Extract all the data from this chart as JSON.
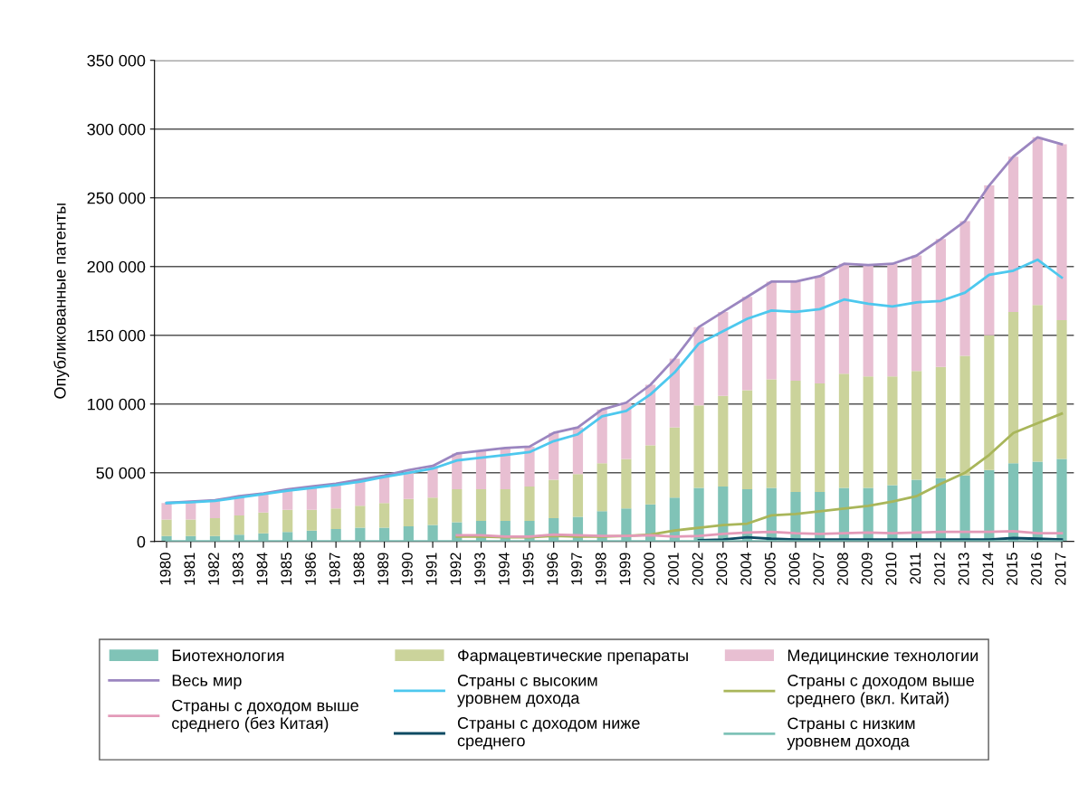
{
  "chart_data": {
    "type": "bar",
    "stacked": true,
    "ylabel": "Опубликованные патенты",
    "categories": [
      "1980",
      "1981",
      "1982",
      "1983",
      "1984",
      "1985",
      "1986",
      "1987",
      "1988",
      "1989",
      "1990",
      "1991",
      "1992",
      "1993",
      "1994",
      "1995",
      "1996",
      "1997",
      "1998",
      "1999",
      "2000",
      "2001",
      "2002",
      "2003",
      "2004",
      "2005",
      "2006",
      "2007",
      "2008",
      "2009",
      "2010",
      "2011",
      "2012",
      "2013",
      "2014",
      "2015",
      "2016",
      "2017"
    ],
    "ylim": [
      0,
      350000
    ],
    "yticks": [
      {
        "value": 0,
        "label": "0"
      },
      {
        "value": 50000,
        "label": "50 000"
      },
      {
        "value": 100000,
        "label": "100 000"
      },
      {
        "value": 150000,
        "label": "150 000"
      },
      {
        "value": 200000,
        "label": "200 000"
      },
      {
        "value": 250000,
        "label": "250 000"
      },
      {
        "value": 300000,
        "label": "300 000"
      },
      {
        "value": 350000,
        "label": "350 000"
      }
    ],
    "grid": "y",
    "legend": "bottom",
    "series": [
      {
        "name": "Биотехнология",
        "color": "#80c3b7",
        "values": [
          4000,
          4000,
          4000,
          5000,
          6000,
          7000,
          8000,
          9000,
          10000,
          10000,
          11000,
          12000,
          14000,
          15000,
          15000,
          15000,
          17000,
          18000,
          22000,
          24000,
          27000,
          32000,
          39000,
          40000,
          38000,
          39000,
          36000,
          36000,
          39000,
          39000,
          41000,
          45000,
          46000,
          48000,
          52000,
          57000,
          58000,
          60000
        ]
      },
      {
        "name": "Фармацевтические препараты",
        "color": "#cbd39b",
        "values": [
          12000,
          12000,
          13000,
          14000,
          15000,
          16000,
          15000,
          15000,
          16000,
          18000,
          20000,
          20000,
          24000,
          23000,
          23000,
          25000,
          28000,
          31000,
          35000,
          36000,
          43000,
          51000,
          60000,
          66000,
          72000,
          79000,
          81000,
          79000,
          83000,
          81000,
          79000,
          79000,
          81000,
          87000,
          98000,
          110000,
          114000,
          101000
        ]
      },
      {
        "name": "Медицинские технологии",
        "color": "#e8bfd2",
        "values": [
          12000,
          13000,
          13000,
          14000,
          14000,
          15000,
          17000,
          18000,
          19000,
          20000,
          21000,
          23000,
          26000,
          28000,
          30000,
          29000,
          34000,
          34000,
          39000,
          41000,
          44000,
          50000,
          57000,
          61000,
          68000,
          71000,
          72000,
          78000,
          80000,
          81000,
          82000,
          84000,
          93000,
          98000,
          109000,
          113000,
          122000,
          128000
        ]
      },
      {
        "name": "Весь мир",
        "type": "line",
        "color": "#9b86c0",
        "values": [
          28000,
          29000,
          30000,
          33000,
          35000,
          38000,
          40000,
          42000,
          45000,
          48000,
          52000,
          55000,
          64000,
          66000,
          68000,
          69000,
          79000,
          83000,
          96000,
          101000,
          114000,
          133000,
          156000,
          167000,
          178000,
          189000,
          189000,
          193000,
          202000,
          201000,
          202000,
          208000,
          220000,
          233000,
          259000,
          280000,
          294000,
          289000
        ]
      },
      {
        "name": "Страны с высоким уровнем дохода",
        "type": "line",
        "color": "#4dc8ee",
        "values": [
          28000,
          28500,
          29500,
          32000,
          34500,
          37000,
          39000,
          41000,
          43500,
          47000,
          50000,
          53000,
          59000,
          61000,
          63000,
          65000,
          73000,
          78000,
          91000,
          95000,
          107000,
          123000,
          144000,
          153000,
          162000,
          168000,
          167000,
          169000,
          176000,
          173000,
          171000,
          174000,
          175000,
          181000,
          194000,
          197000,
          205000,
          192000
        ]
      },
      {
        "name": "Страны с доходом выше среднего (вкл. Китай)",
        "type": "line",
        "color": "#a9b65a",
        "values": [
          null,
          null,
          null,
          null,
          null,
          null,
          null,
          null,
          null,
          null,
          null,
          null,
          3500,
          3500,
          3000,
          3000,
          4000,
          3500,
          3500,
          4000,
          5000,
          8000,
          10000,
          12000,
          13000,
          19000,
          20000,
          22000,
          24000,
          26000,
          29000,
          33000,
          42000,
          50000,
          63000,
          79000,
          86000,
          93000
        ]
      },
      {
        "name": "Страны с доходом выше среднего (без Китая)",
        "type": "line",
        "color": "#e39ab8",
        "values": [
          null,
          null,
          null,
          null,
          null,
          null,
          null,
          null,
          null,
          null,
          null,
          null,
          4500,
          4500,
          3500,
          3500,
          5000,
          4500,
          4000,
          4000,
          4500,
          3500,
          4000,
          5500,
          6500,
          7000,
          6000,
          5500,
          6000,
          6500,
          6000,
          6500,
          7000,
          7000,
          7000,
          7500,
          6000,
          6000
        ]
      },
      {
        "name": "Страны с доходом ниже среднего",
        "type": "line",
        "color": "#0d4a63",
        "values": [
          null,
          null,
          null,
          null,
          null,
          null,
          null,
          null,
          null,
          null,
          null,
          null,
          null,
          null,
          null,
          null,
          null,
          null,
          null,
          null,
          null,
          null,
          1000,
          1500,
          3000,
          2000,
          1500,
          1500,
          1500,
          1500,
          1500,
          1500,
          1500,
          1500,
          1500,
          2500,
          2000,
          1500
        ]
      },
      {
        "name": "Страны с низким уровнем дохода",
        "type": "line",
        "color": "#7fc3b8",
        "values": [
          100,
          100,
          100,
          100,
          100,
          100,
          100,
          100,
          100,
          100,
          100,
          100,
          100,
          100,
          100,
          100,
          100,
          100,
          100,
          100,
          100,
          100,
          100,
          100,
          100,
          100,
          100,
          100,
          100,
          100,
          100,
          100,
          100,
          100,
          100,
          100,
          100,
          100
        ]
      }
    ]
  }
}
